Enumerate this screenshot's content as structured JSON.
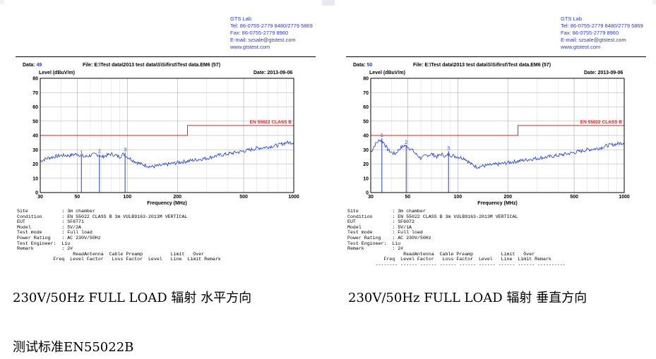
{
  "reports": [
    {
      "lab": {
        "name": "GTS Lab",
        "tel": "Tel: 86-0755-2779 8480/2779 5869",
        "fax": "Fax: 86-0755-2779 8960",
        "email": "E-mail: szsale@gtstest.com",
        "web": "www.gtstest.com"
      },
      "data_label": "Data:",
      "data_value": "49",
      "file": "File: E:\\Test data\\2013 test data\\S\\Sifirst\\Test data.EM6  (57)",
      "level_label": "Level (dBuV/m)",
      "date": "Date: 2013-09-06",
      "info_lines": [
        "Site            : 3m chamber",
        "Condition       : EN 55022 CLASS B 3m VULB9163-2013M VERTICAL",
        "EUT             : SF6T71",
        "Model           : 5V/2A",
        "Test mode       : Full load",
        "Power Rating    : AC 230V/50Hz",
        "Test Engineer:  Liu",
        "Remark          : 2#",
        "                    ReadAntenna  Cable Preamp          Limit   Over",
        "             Freq  Level Factor   Loss Factor  Level   Line  Limit Remark"
      ]
    },
    {
      "lab": {
        "name": "GTS Lab",
        "tel": "Tel: 86-0755-2779 8480/2779 5869",
        "fax": "Fax: 86-0755-2779 8960",
        "email": "E-mail: szsale@gtstest.com",
        "web": "www.gtstest.com"
      },
      "data_label": "Data:",
      "data_value": "50",
      "file": "File: E:\\Test data\\2013 test data\\S\\Sifirst\\Test data.EM6  (57)",
      "level_label": "Level (dBuV/m)",
      "date": "Date: 2013-09-06",
      "info_lines": [
        "Site            : 3m chamber",
        "Condition       : EN 55022 CLASS B 3m VULB9163-2013M VERTICAL",
        "EUT             : SF6072",
        "Model           : 5V/1A",
        "Test mode       : Full load",
        "Power Rating    : AC 230V/50Hz",
        "Test Engineer:  Liu",
        "Remark          : 2#",
        "                    ReadAntenna  Cable Preamp          Limit   Over",
        "             Freq  Level Factor   Loss Factor  Level   Line  Limit Remark",
        "          -------- ------ ------ ------ ------ ------ ------ ------ ----------"
      ]
    }
  ],
  "captions": {
    "left": "230V/50Hz FULL LOAD 辐射  水平方向",
    "right": "230V/50Hz FULL LOAD 辐射  垂直方向",
    "bottom": "测试标准EN55022B"
  },
  "chart_data": [
    {
      "type": "line",
      "xscale": "log",
      "xlim": [
        30,
        1000
      ],
      "ylim": [
        0,
        80
      ],
      "x_ticks": [
        30,
        50,
        100,
        200,
        500,
        1000
      ],
      "y_ticks": [
        0,
        10,
        20,
        30,
        40,
        50,
        60,
        70,
        80
      ],
      "xlabel": "Frequency (MHz)",
      "ylabel": "Level (dBuV/m)",
      "grid": true,
      "limit": {
        "name": "EN 55022 CLASS B",
        "color": "#dd2222",
        "steps": [
          [
            30,
            230,
            40
          ],
          [
            230,
            1000,
            47
          ]
        ]
      },
      "trace": {
        "color": "#1e3fd0",
        "points": [
          [
            30,
            22
          ],
          [
            33,
            24
          ],
          [
            36,
            25
          ],
          [
            40,
            26
          ],
          [
            45,
            26
          ],
          [
            50,
            27
          ],
          [
            55,
            25
          ],
          [
            60,
            26
          ],
          [
            65,
            27
          ],
          [
            70,
            25
          ],
          [
            75,
            26
          ],
          [
            80,
            27
          ],
          [
            85,
            26
          ],
          [
            90,
            25
          ],
          [
            95,
            27
          ],
          [
            100,
            25
          ],
          [
            110,
            22
          ],
          [
            120,
            20
          ],
          [
            130,
            19
          ],
          [
            140,
            18
          ],
          [
            160,
            19
          ],
          [
            180,
            20
          ],
          [
            200,
            21
          ],
          [
            230,
            22
          ],
          [
            260,
            23
          ],
          [
            300,
            24
          ],
          [
            350,
            26
          ],
          [
            400,
            27
          ],
          [
            500,
            29
          ],
          [
            600,
            31
          ],
          [
            700,
            32
          ],
          [
            800,
            33
          ],
          [
            900,
            35
          ],
          [
            1000,
            35
          ]
        ]
      },
      "markers": [
        {
          "label": "1",
          "x": 53,
          "y": 26
        },
        {
          "label": "2",
          "x": 68,
          "y": 27
        },
        {
          "label": "3",
          "x": 97,
          "y": 28
        }
      ]
    },
    {
      "type": "line",
      "xscale": "log",
      "xlim": [
        30,
        1000
      ],
      "ylim": [
        0,
        80
      ],
      "x_ticks": [
        30,
        50,
        100,
        200,
        500,
        1000
      ],
      "y_ticks": [
        0,
        10,
        20,
        30,
        40,
        50,
        60,
        70,
        80
      ],
      "xlabel": "Frequency (MHz)",
      "ylabel": "Level (dBuV/m)",
      "grid": true,
      "limit": {
        "name": "EN 55022 CLASS B",
        "color": "#dd2222",
        "steps": [
          [
            30,
            230,
            40
          ],
          [
            230,
            1000,
            47
          ]
        ]
      },
      "trace": {
        "color": "#1e3fd0",
        "points": [
          [
            30,
            28
          ],
          [
            32,
            34
          ],
          [
            34,
            37
          ],
          [
            36,
            35
          ],
          [
            38,
            30
          ],
          [
            40,
            28
          ],
          [
            42,
            27
          ],
          [
            45,
            31
          ],
          [
            48,
            33
          ],
          [
            50,
            32
          ],
          [
            53,
            30
          ],
          [
            56,
            27
          ],
          [
            60,
            24
          ],
          [
            65,
            26
          ],
          [
            70,
            27
          ],
          [
            75,
            25
          ],
          [
            80,
            27
          ],
          [
            85,
            25
          ],
          [
            88,
            27
          ],
          [
            92,
            26
          ],
          [
            100,
            25
          ],
          [
            110,
            24
          ],
          [
            120,
            20
          ],
          [
            130,
            18
          ],
          [
            150,
            19
          ],
          [
            180,
            20
          ],
          [
            200,
            21
          ],
          [
            230,
            22
          ],
          [
            260,
            23
          ],
          [
            300,
            24
          ],
          [
            350,
            25
          ],
          [
            400,
            26
          ],
          [
            500,
            28
          ],
          [
            600,
            30
          ],
          [
            700,
            31
          ],
          [
            800,
            33
          ],
          [
            900,
            34
          ],
          [
            1000,
            35
          ]
        ]
      },
      "markers": [
        {
          "label": "1",
          "x": 35,
          "y": 38
        },
        {
          "label": "2",
          "x": 49,
          "y": 33
        },
        {
          "label": "3",
          "x": 88,
          "y": 29
        }
      ]
    }
  ]
}
